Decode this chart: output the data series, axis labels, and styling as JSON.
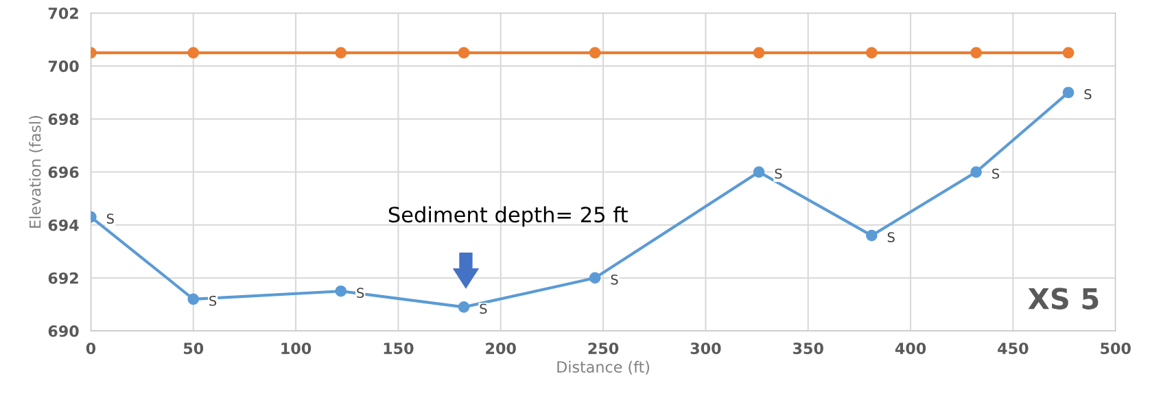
{
  "chart_data": {
    "type": "line",
    "xlabel": "Distance (ft)",
    "ylabel": "Elevation (fasl)",
    "xlim": [
      0,
      500
    ],
    "xticks": [
      0,
      50,
      100,
      150,
      200,
      250,
      300,
      350,
      400,
      450,
      500
    ],
    "ylim": [
      690,
      702
    ],
    "yticks": [
      690,
      692,
      694,
      696,
      698,
      700,
      702
    ],
    "grid": true,
    "marker": "circle",
    "line_style": "solid",
    "series": [
      {
        "color": "#ed7d31",
        "x": [
          0,
          50,
          122,
          182,
          246,
          326,
          381,
          432,
          477
        ],
        "values": [
          700.5,
          700.5,
          700.5,
          700.5,
          700.5,
          700.5,
          700.5,
          700.5,
          700.5
        ]
      },
      {
        "color": "#5b9bd5",
        "x": [
          0,
          50,
          122,
          182,
          246,
          326,
          381,
          432,
          477
        ],
        "values": [
          694.3,
          691.2,
          691.5,
          690.9,
          692.0,
          696.0,
          693.6,
          696.0,
          699.0
        ],
        "value_labels": [
          "S",
          "S",
          "S",
          "S",
          "S",
          "S",
          "S",
          "S",
          "S"
        ]
      }
    ],
    "annotations": [
      "Sediment depth= 25 ft",
      "XS 5"
    ]
  }
}
